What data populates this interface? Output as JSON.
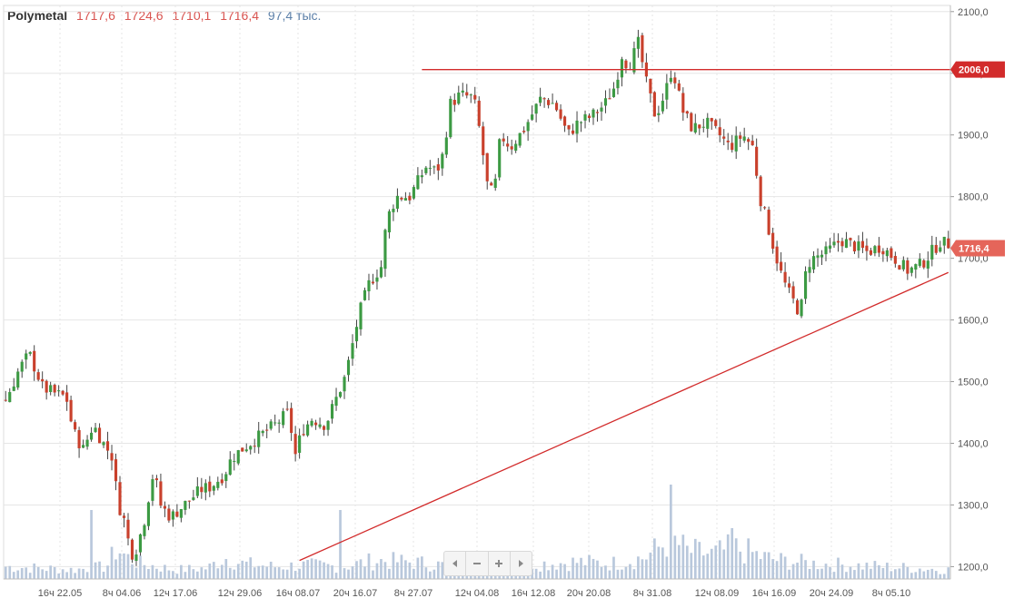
{
  "header": {
    "ticker": "Polymetal",
    "open": "1717,6",
    "high": "1724,6",
    "low": "1710,1",
    "close": "1716,4",
    "volume": "97,4 тыс."
  },
  "nav": {
    "icons": [
      "chevron-left-icon",
      "minus-icon",
      "plus-icon",
      "chevron-right-icon"
    ]
  },
  "colors": {
    "up": "#3c9a43",
    "down": "#c9402c",
    "volume": "#b9c8dc",
    "grid": "#e6e6e6",
    "line": "#d22b2b",
    "price_label": "#d22b2b",
    "last_label": "#e5655a"
  },
  "chart_data": {
    "type": "candlestick",
    "title": "Polymetal",
    "ylim": [
      1180,
      2110
    ],
    "y_ticks": [
      "1200,0",
      "1300,0",
      "1400,0",
      "1500,0",
      "1600,0",
      "1700,0",
      "1800,0",
      "1900,0",
      "2000,0",
      "2100,0"
    ],
    "x_tick_labels": [
      "16ч 22.05",
      "8ч 04.06",
      "12ч 17.06",
      "12ч 29.06",
      "16ч 08.07",
      "20ч 16.07",
      "8ч 27.07",
      "12ч 04.08",
      "16ч 12.08",
      "20ч 20.08",
      "8ч 31.08",
      "12ч 08.09",
      "16ч 16.09",
      "20ч 24.09",
      "8ч 05.10"
    ],
    "candle_count": 232,
    "close_path": [
      [
        0,
        1470
      ],
      [
        8,
        1520
      ],
      [
        14,
        1545
      ],
      [
        22,
        1490
      ],
      [
        30,
        1480
      ],
      [
        36,
        1475
      ],
      [
        40,
        1420
      ],
      [
        46,
        1390
      ],
      [
        52,
        1430
      ],
      [
        58,
        1400
      ],
      [
        63,
        1380
      ],
      [
        67,
        1300
      ],
      [
        70,
        1280
      ],
      [
        73,
        1240
      ],
      [
        76,
        1215
      ],
      [
        82,
        1270
      ],
      [
        86,
        1330
      ],
      [
        88,
        1355
      ],
      [
        92,
        1300
      ],
      [
        98,
        1280
      ],
      [
        104,
        1295
      ],
      [
        110,
        1310
      ],
      [
        116,
        1325
      ],
      [
        122,
        1330
      ],
      [
        130,
        1350
      ],
      [
        134,
        1375
      ],
      [
        140,
        1390
      ],
      [
        150,
        1410
      ],
      [
        160,
        1430
      ],
      [
        168,
        1450
      ],
      [
        172,
        1380
      ],
      [
        176,
        1420
      ],
      [
        182,
        1440
      ],
      [
        190,
        1430
      ],
      [
        196,
        1470
      ],
      [
        202,
        1510
      ],
      [
        206,
        1560
      ],
      [
        210,
        1610
      ],
      [
        216,
        1660
      ],
      [
        224,
        1690
      ],
      [
        226,
        1760
      ],
      [
        232,
        1800
      ],
      [
        240,
        1800
      ],
      [
        244,
        1820
      ],
      [
        250,
        1850
      ],
      [
        256,
        1840
      ],
      [
        260,
        1870
      ],
      [
        264,
        1950
      ],
      [
        270,
        1965
      ],
      [
        278,
        1960
      ],
      [
        282,
        1900
      ],
      [
        286,
        1820
      ],
      [
        290,
        1800
      ],
      [
        294,
        1900
      ],
      [
        300,
        1880
      ],
      [
        308,
        1910
      ],
      [
        318,
        1960
      ],
      [
        326,
        1950
      ],
      [
        334,
        1900
      ],
      [
        340,
        1920
      ],
      [
        348,
        1930
      ],
      [
        356,
        1950
      ],
      [
        362,
        1980
      ],
      [
        366,
        2030
      ],
      [
        370,
        2010
      ],
      [
        376,
        2050
      ],
      [
        380,
        1990
      ],
      [
        386,
        1930
      ],
      [
        392,
        1970
      ],
      [
        396,
        2010
      ],
      [
        402,
        1940
      ],
      [
        408,
        1910
      ],
      [
        416,
        1920
      ],
      [
        424,
        1900
      ],
      [
        430,
        1880
      ],
      [
        438,
        1900
      ],
      [
        444,
        1880
      ],
      [
        448,
        1800
      ],
      [
        452,
        1760
      ],
      [
        456,
        1720
      ],
      [
        460,
        1680
      ],
      [
        464,
        1650
      ],
      [
        468,
        1630
      ],
      [
        472,
        1610
      ],
      [
        476,
        1690
      ],
      [
        480,
        1700
      ],
      [
        488,
        1710
      ],
      [
        496,
        1730
      ],
      [
        504,
        1720
      ],
      [
        512,
        1710
      ],
      [
        520,
        1720
      ],
      [
        528,
        1700
      ],
      [
        536,
        1680
      ],
      [
        544,
        1690
      ],
      [
        550,
        1710
      ],
      [
        556,
        1730
      ],
      [
        560,
        1716
      ]
    ],
    "volume_profile": [
      [
        0,
        0.4
      ],
      [
        20,
        0.35
      ],
      [
        40,
        0.3
      ],
      [
        60,
        0.4
      ],
      [
        66,
        1.0
      ],
      [
        72,
        0.7
      ],
      [
        80,
        0.5
      ],
      [
        100,
        0.3
      ],
      [
        120,
        0.35
      ],
      [
        130,
        0.7
      ],
      [
        140,
        0.5
      ],
      [
        160,
        0.4
      ],
      [
        180,
        0.45
      ],
      [
        200,
        0.4
      ],
      [
        220,
        0.6
      ],
      [
        240,
        0.55
      ],
      [
        260,
        0.45
      ],
      [
        280,
        0.6
      ],
      [
        300,
        0.55
      ],
      [
        320,
        0.5
      ],
      [
        340,
        0.55
      ],
      [
        360,
        0.5
      ],
      [
        380,
        0.7
      ],
      [
        395,
        1.3
      ],
      [
        405,
        0.9
      ],
      [
        420,
        0.8
      ],
      [
        432,
        1.0
      ],
      [
        440,
        0.9
      ],
      [
        450,
        0.7
      ],
      [
        460,
        0.6
      ],
      [
        480,
        0.5
      ],
      [
        500,
        0.45
      ],
      [
        520,
        0.4
      ],
      [
        560,
        0.3
      ]
    ],
    "volume_spikes": [
      [
        50,
        1.9
      ],
      [
        198,
        1.9
      ],
      [
        396,
        2.6
      ],
      [
        432,
        1.4
      ]
    ],
    "horizontal_line": {
      "value": 2006,
      "label": "2006,0"
    },
    "trendline": {
      "from": [
        1210,
        72
      ],
      "to": [
        1677,
        232
      ]
    },
    "last_price": {
      "value": 1716.4,
      "label": "1716,4"
    }
  }
}
